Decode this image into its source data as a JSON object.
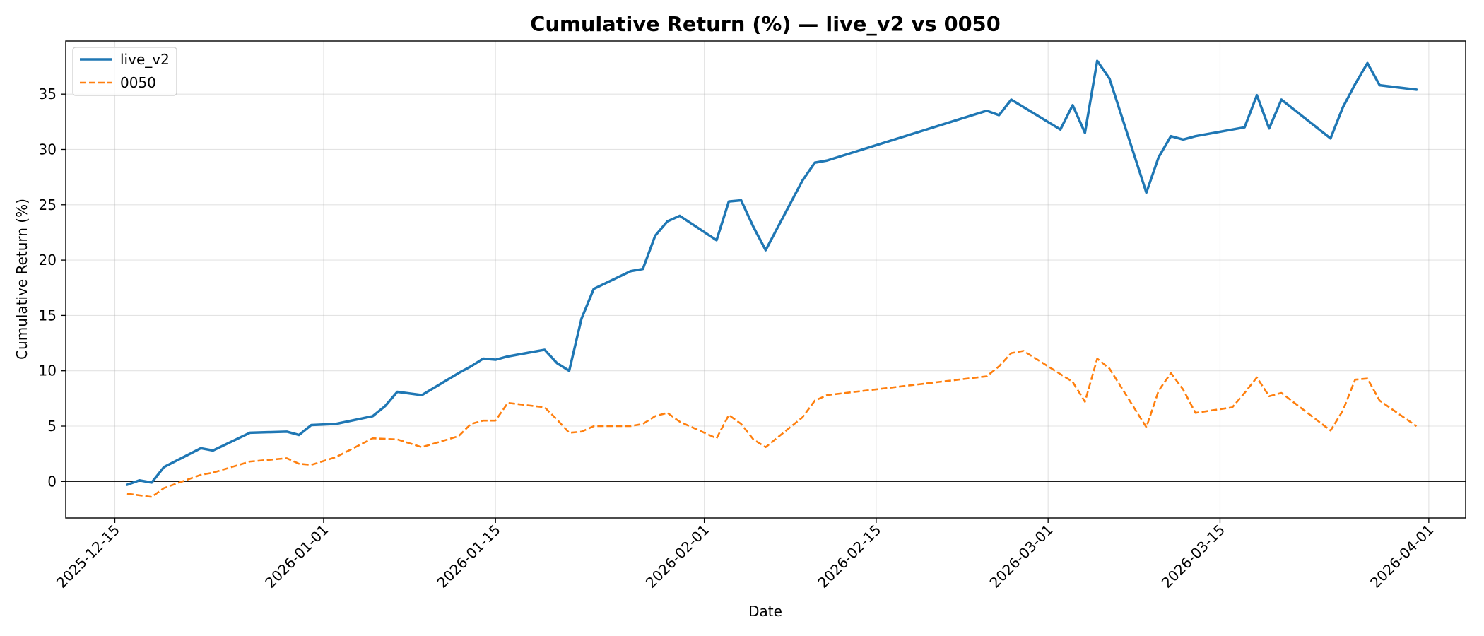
{
  "chart_data": {
    "type": "line",
    "title": "Cumulative Return (%) — live_v2 vs 0050",
    "xlabel": "Date",
    "ylabel": "Cumulative Return (%)",
    "x_ticks": [
      "2025-12-15",
      "2026-01-01",
      "2026-01-15",
      "2026-02-01",
      "2026-02-15",
      "2026-03-01",
      "2026-03-15",
      "2026-04-01"
    ],
    "y_ticks": [
      0,
      5,
      10,
      15,
      20,
      25,
      30,
      35
    ],
    "xlim": [
      "2025-12-11",
      "2026-04-04"
    ],
    "ylim": [
      -3.3,
      39.8
    ],
    "grid": true,
    "zero_line": true,
    "legend_position": "top-left",
    "series": [
      {
        "name": "live_v2",
        "color": "#1f77b4",
        "style": "solid",
        "points": [
          [
            "2025-12-16",
            -0.3
          ],
          [
            "2025-12-17",
            0.1
          ],
          [
            "2025-12-18",
            -0.1
          ],
          [
            "2025-12-19",
            1.3
          ],
          [
            "2025-12-22",
            3.0
          ],
          [
            "2025-12-23",
            2.8
          ],
          [
            "2025-12-26",
            4.4
          ],
          [
            "2025-12-29",
            4.5
          ],
          [
            "2025-12-30",
            4.2
          ],
          [
            "2025-12-31",
            5.1
          ],
          [
            "2026-01-02",
            5.2
          ],
          [
            "2026-01-05",
            5.9
          ],
          [
            "2026-01-06",
            6.8
          ],
          [
            "2026-01-07",
            8.1
          ],
          [
            "2026-01-09",
            7.8
          ],
          [
            "2026-01-12",
            9.8
          ],
          [
            "2026-01-13",
            10.4
          ],
          [
            "2026-01-14",
            11.1
          ],
          [
            "2026-01-15",
            11.0
          ],
          [
            "2026-01-16",
            11.3
          ],
          [
            "2026-01-19",
            11.9
          ],
          [
            "2026-01-20",
            10.7
          ],
          [
            "2026-01-21",
            10.0
          ],
          [
            "2026-01-22",
            14.7
          ],
          [
            "2026-01-23",
            17.4
          ],
          [
            "2026-01-26",
            19.0
          ],
          [
            "2026-01-27",
            19.2
          ],
          [
            "2026-01-28",
            22.2
          ],
          [
            "2026-01-29",
            23.5
          ],
          [
            "2026-01-30",
            24.0
          ],
          [
            "2026-02-02",
            21.8
          ],
          [
            "2026-02-03",
            25.3
          ],
          [
            "2026-02-04",
            25.4
          ],
          [
            "2026-02-05",
            23.0
          ],
          [
            "2026-02-06",
            20.9
          ],
          [
            "2026-02-09",
            27.2
          ],
          [
            "2026-02-10",
            28.8
          ],
          [
            "2026-02-11",
            29.0
          ],
          [
            "2026-02-24",
            33.5
          ],
          [
            "2026-02-25",
            33.1
          ],
          [
            "2026-02-26",
            34.5
          ],
          [
            "2026-03-02",
            31.8
          ],
          [
            "2026-03-03",
            34.0
          ],
          [
            "2026-03-04",
            31.5
          ],
          [
            "2026-03-05",
            38.0
          ],
          [
            "2026-03-06",
            36.4
          ],
          [
            "2026-03-09",
            26.1
          ],
          [
            "2026-03-10",
            29.3
          ],
          [
            "2026-03-11",
            31.2
          ],
          [
            "2026-03-12",
            30.9
          ],
          [
            "2026-03-13",
            31.2
          ],
          [
            "2026-03-17",
            32.0
          ],
          [
            "2026-03-18",
            34.9
          ],
          [
            "2026-03-19",
            31.9
          ],
          [
            "2026-03-20",
            34.5
          ],
          [
            "2026-03-24",
            31.0
          ],
          [
            "2026-03-25",
            33.8
          ],
          [
            "2026-03-26",
            35.9
          ],
          [
            "2026-03-27",
            37.8
          ],
          [
            "2026-03-28",
            35.8
          ],
          [
            "2026-03-31",
            35.4
          ]
        ]
      },
      {
        "name": "0050",
        "color": "#ff7f0e",
        "style": "dashed",
        "points": [
          [
            "2025-12-16",
            -1.1
          ],
          [
            "2025-12-18",
            -1.4
          ],
          [
            "2025-12-19",
            -0.6
          ],
          [
            "2025-12-22",
            0.6
          ],
          [
            "2025-12-23",
            0.8
          ],
          [
            "2025-12-26",
            1.8
          ],
          [
            "2025-12-29",
            2.1
          ],
          [
            "2025-12-30",
            1.6
          ],
          [
            "2025-12-31",
            1.5
          ],
          [
            "2026-01-02",
            2.2
          ],
          [
            "2026-01-05",
            3.9
          ],
          [
            "2026-01-07",
            3.8
          ],
          [
            "2026-01-09",
            3.1
          ],
          [
            "2026-01-12",
            4.1
          ],
          [
            "2026-01-13",
            5.2
          ],
          [
            "2026-01-14",
            5.5
          ],
          [
            "2026-01-15",
            5.5
          ],
          [
            "2026-01-16",
            7.1
          ],
          [
            "2026-01-19",
            6.7
          ],
          [
            "2026-01-20",
            5.6
          ],
          [
            "2026-01-21",
            4.4
          ],
          [
            "2026-01-22",
            4.5
          ],
          [
            "2026-01-23",
            5.0
          ],
          [
            "2026-01-26",
            5.0
          ],
          [
            "2026-01-27",
            5.2
          ],
          [
            "2026-01-28",
            5.9
          ],
          [
            "2026-01-29",
            6.2
          ],
          [
            "2026-01-30",
            5.4
          ],
          [
            "2026-02-02",
            3.9
          ],
          [
            "2026-02-03",
            6.0
          ],
          [
            "2026-02-04",
            5.2
          ],
          [
            "2026-02-05",
            3.8
          ],
          [
            "2026-02-06",
            3.1
          ],
          [
            "2026-02-09",
            5.8
          ],
          [
            "2026-02-10",
            7.3
          ],
          [
            "2026-02-11",
            7.8
          ],
          [
            "2026-02-24",
            9.5
          ],
          [
            "2026-02-25",
            10.4
          ],
          [
            "2026-02-26",
            11.6
          ],
          [
            "2026-02-27",
            11.8
          ],
          [
            "2026-03-03",
            9.0
          ],
          [
            "2026-03-04",
            7.2
          ],
          [
            "2026-03-05",
            11.1
          ],
          [
            "2026-03-06",
            10.2
          ],
          [
            "2026-03-09",
            4.9
          ],
          [
            "2026-03-10",
            8.2
          ],
          [
            "2026-03-11",
            9.8
          ],
          [
            "2026-03-12",
            8.3
          ],
          [
            "2026-03-13",
            6.2
          ],
          [
            "2026-03-16",
            6.7
          ],
          [
            "2026-03-17",
            8.0
          ],
          [
            "2026-03-18",
            9.4
          ],
          [
            "2026-03-19",
            7.7
          ],
          [
            "2026-03-20",
            8.0
          ],
          [
            "2026-03-24",
            4.6
          ],
          [
            "2026-03-25",
            6.4
          ],
          [
            "2026-03-26",
            9.2
          ],
          [
            "2026-03-27",
            9.3
          ],
          [
            "2026-03-28",
            7.3
          ],
          [
            "2026-03-31",
            5.0
          ]
        ]
      }
    ]
  }
}
